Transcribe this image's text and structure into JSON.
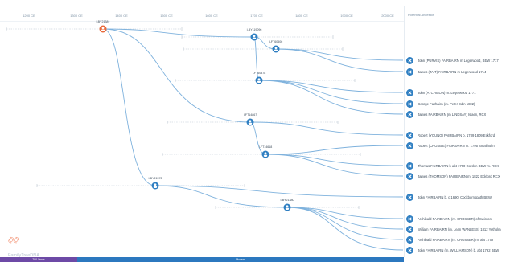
{
  "timeline": {
    "axis_labels": [
      "1200 CE",
      "1300 CE",
      "1400 CE",
      "1500 CE",
      "1600 CE",
      "1700 CE",
      "1800 CE",
      "1900 CE",
      "2000 CE"
    ],
    "side_title": "Potential Ancestor"
  },
  "nodes": [
    {
      "id": "n1",
      "label": "I-BY2138+",
      "color": "#e96a3b"
    },
    {
      "id": "n2",
      "label": "I-BY119096",
      "color": "#2f7fc2"
    },
    {
      "id": "n3",
      "label": "I-FT60506",
      "color": "#2f7fc2"
    },
    {
      "id": "n4",
      "label": "I-FT60878",
      "color": "#2f7fc2"
    },
    {
      "id": "n5",
      "label": "I-FT14867",
      "color": "#2f7fc2"
    },
    {
      "id": "n6",
      "label": "I-FT14618",
      "color": "#2f7fc2"
    },
    {
      "id": "n7",
      "label": "I-BY21572",
      "color": "#2f7fc2"
    },
    {
      "id": "n8",
      "label": "I-BY21380",
      "color": "#2f7fc2"
    }
  ],
  "descendants": [
    "John (PURVIS) FAIRBAIRN m Legerwood, BEW 1717",
    "James (TAIT) FAIRBAIRN m Legerwood 1714",
    "John (ATCHISON) m. Legerwood 1771",
    "George Fairbairn (m. Peter Edin 1802)",
    "James FAIRBAIRN (m LINDSAY) Islaen, RCX",
    "Robert (YOUNG) FAIRBAIRN b. 1789 1809 Eckford",
    "Robert (CROSBIE) FAIRBAIRN m. 1795 Smailholm",
    "Thomas FAIRBAIRN b abt 1790 Gordon BEW m. RCX",
    "James (THOMSON) FAIRBAIRN m. 1822 Eckford RCX",
    "John FAIRBAIRN b. c 1690, Cockburnspath BEW",
    "Archibald FAIRBAIRN (m. CROSSER) of Swinton",
    "William FAIRBAIRN (m. Jean WANLESS) 1812 Yetholm",
    "Archibald FAIRBAIRN (m. CROSSER) m. abt 1702",
    "John FAIRBAIRN (m. WILLIAMSON) b. abt 1792 BEW"
  ],
  "logo": {
    "text": "FamilyTreeDNA",
    "mark": "࿂࿂"
  },
  "bottom_bar": {
    "left_label": "700 Years",
    "right_label": "Modern"
  }
}
